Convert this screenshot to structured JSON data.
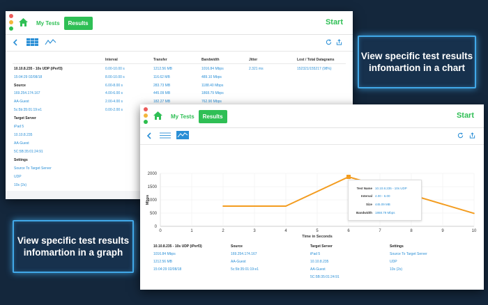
{
  "window_table": {
    "tabs": [
      "My Tests",
      "Results"
    ],
    "start_label": "Start",
    "headers": [
      "Interval",
      "Transfer",
      "Bandwidth",
      "Jitter",
      "Lost / Total Datagrams"
    ],
    "test_name": "10.10.8.235 - 10s UDP (iPerf3)",
    "date": "15:04:29  02/08/18",
    "source_label": "Source",
    "source_ip": "169.254.174.167",
    "source_name": "AA-Guest",
    "source_mac": "5c:5b:35:01:19:e1",
    "target_label": "Target Server",
    "target_name": "iPad 5",
    "target_ip": "10.10.8.235",
    "target_net": "AA-Guest",
    "target_mac": "5C:5B:35:01:24:91",
    "settings_label": "Settings",
    "setting_dir": "Source To Target Server",
    "setting_proto": "UDP",
    "setting_dur": "10s (2s)",
    "rows": [
      {
        "interval": "0.00-10.00 s",
        "transfer": "1212.56 MB",
        "bandwidth": "1016.84 Mbps",
        "jitter": "2.321 ms",
        "lost": "152321/155217 (98%)"
      },
      {
        "interval": "8.00-10.00 s",
        "transfer": "116.62 MB",
        "bandwidth": "489.10 Mbps",
        "jitter": "",
        "lost": ""
      },
      {
        "interval": "6.00-8.00 s",
        "transfer": "283.73 MB",
        "bandwidth": "1188.40 Mbps",
        "jitter": "",
        "lost": ""
      },
      {
        "interval": "4.00-6.00 s",
        "transfer": "445.09 MB",
        "bandwidth": "1868.79 Mbps",
        "jitter": "",
        "lost": ""
      },
      {
        "interval": "2.00-4.00 s",
        "transfer": "182.27 MB",
        "bandwidth": "762.90 Mbps",
        "jitter": "",
        "lost": ""
      },
      {
        "interval": "0.00-2.00 s",
        "transfer": "",
        "bandwidth": "",
        "jitter": "",
        "lost": ""
      }
    ]
  },
  "window_chart": {
    "tabs": [
      "My Tests",
      "Results"
    ],
    "start_label": "Start",
    "tooltip": {
      "test_name_label": "Test Name",
      "test_name": "10.10.8.235 - 10s UDP",
      "interval_label": "Interval",
      "interval": "4.00 - 6.00",
      "size_label": "Size",
      "size": "445.09 MB",
      "bandwidth_label": "Bandwidth",
      "bandwidth": "1868.79 Mbps"
    },
    "summary": {
      "col1": {
        "title": "10.10.8.235 - 10s UDP (iPerf3)",
        "l1": "1016.84 Mbps",
        "l2": "1212.56 MB",
        "l3": "15:04:29  02/08/18"
      },
      "col2": {
        "title": "Source",
        "l1": "169.254.174.167",
        "l2": "AA-Guest",
        "l3": "5c:5b:35:01:19:e1"
      },
      "col3": {
        "title": "Target Server",
        "l1": "iPad 5",
        "l2": "10.10.8.235",
        "l3": "AA-Guest",
        "l4": "5C:5B:35:01:24:91"
      },
      "col4": {
        "title": "Settings",
        "l1": "Source To Target Server",
        "l2": "UDP",
        "l3": "10s (2s)"
      }
    }
  },
  "chart_data": {
    "type": "line",
    "x": [
      2,
      4,
      6,
      8,
      10
    ],
    "series": [
      {
        "values": [
          762.9,
          762.9,
          1868.79,
          1188.4,
          489.1
        ]
      }
    ],
    "highlight_x": 6,
    "xlabel": "Time in Seconds",
    "ylabel": "Mbps",
    "xlim": [
      0,
      10
    ],
    "ylim": [
      0,
      2000
    ],
    "x_ticks": [
      0,
      1,
      2,
      3,
      4,
      5,
      6,
      7,
      8,
      9,
      10
    ],
    "y_ticks": [
      0,
      500,
      1000,
      1500,
      2000
    ],
    "grid": true,
    "line_color": "#f39c1f"
  },
  "callouts": {
    "top": "View specific test results infomartion in a chart",
    "bottom": "View specific test results infomartion in a graph"
  },
  "colors": {
    "accent": "#2fbf55",
    "link": "#2a8fd6",
    "background": "#14273c",
    "callout_border": "#41a8e8"
  }
}
